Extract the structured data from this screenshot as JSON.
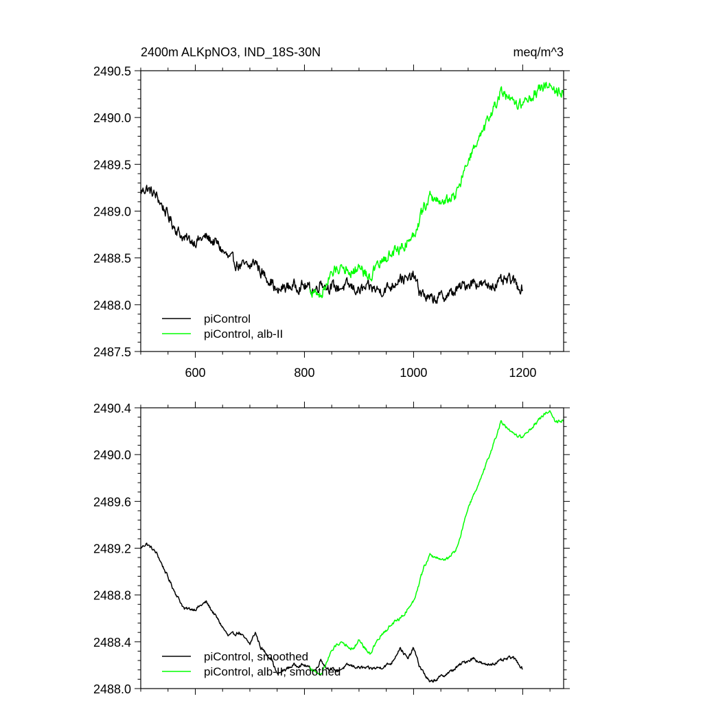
{
  "chart_data": [
    {
      "type": "line",
      "title": "2400m ALKpNO3, IND_18S-30N",
      "units": "meq/m^3",
      "xlim": [
        500,
        1275
      ],
      "ylim": [
        2487.5,
        2490.5
      ],
      "xticks": [
        600,
        800,
        1000,
        1200
      ],
      "xtick_labels": [
        "600",
        "800",
        "1000",
        "1200"
      ],
      "yticks": [
        2487.5,
        2488.0,
        2488.5,
        2489.0,
        2489.5,
        2490.0,
        2490.5
      ],
      "ytick_labels": [
        "2487.5",
        "2488.0",
        "2488.5",
        "2489.0",
        "2489.5",
        "2490.0",
        "2490.5"
      ],
      "legend_position": "bottom-left",
      "series": [
        {
          "name": "piControl",
          "color": "#000000",
          "noise": 0.05,
          "x": [
            500,
            510,
            520,
            530,
            540,
            560,
            580,
            600,
            620,
            640,
            660,
            680,
            700,
            710,
            720,
            740,
            750,
            760,
            780,
            800,
            820,
            830,
            840,
            860,
            880,
            900,
            920,
            940,
            960,
            975,
            990,
            1000,
            1010,
            1030,
            1050,
            1070,
            1090,
            1110,
            1130,
            1150,
            1170,
            1180,
            1190,
            1200
          ],
          "y": [
            2489.2,
            2489.25,
            2489.2,
            2489.15,
            2489.05,
            2488.85,
            2488.7,
            2488.68,
            2488.72,
            2488.65,
            2488.5,
            2488.42,
            2488.4,
            2488.47,
            2488.35,
            2488.25,
            2488.12,
            2488.18,
            2488.2,
            2488.2,
            2488.15,
            2488.25,
            2488.2,
            2488.18,
            2488.2,
            2488.15,
            2488.18,
            2488.15,
            2488.2,
            2488.3,
            2488.25,
            2488.32,
            2488.15,
            2488.05,
            2488.08,
            2488.12,
            2488.2,
            2488.25,
            2488.2,
            2488.22,
            2488.25,
            2488.27,
            2488.2,
            2488.18
          ]
        },
        {
          "name": "piControl, alb-II",
          "color": "#00ff00",
          "noise": 0.05,
          "x": [
            810,
            820,
            830,
            840,
            850,
            860,
            870,
            880,
            890,
            900,
            910,
            920,
            940,
            960,
            980,
            1000,
            1020,
            1030,
            1040,
            1060,
            1080,
            1100,
            1120,
            1140,
            1160,
            1180,
            1200,
            1220,
            1240,
            1250,
            1260,
            1275
          ],
          "y": [
            2488.15,
            2488.12,
            2488.1,
            2488.22,
            2488.32,
            2488.38,
            2488.42,
            2488.38,
            2488.35,
            2488.42,
            2488.35,
            2488.3,
            2488.45,
            2488.55,
            2488.62,
            2488.75,
            2489.05,
            2489.15,
            2489.12,
            2489.1,
            2489.2,
            2489.55,
            2489.75,
            2490.0,
            2490.28,
            2490.15,
            2490.15,
            2490.25,
            2490.35,
            2490.38,
            2490.28,
            2490.3
          ]
        }
      ]
    },
    {
      "type": "line",
      "title": "",
      "units": "",
      "xlim": [
        500,
        1275
      ],
      "ylim": [
        2488.0,
        2490.4
      ],
      "xticks": [
        600,
        800,
        1000,
        1200
      ],
      "xtick_labels": [],
      "yticks": [
        2488.0,
        2488.4,
        2488.8,
        2489.2,
        2489.6,
        2490.0,
        2490.4
      ],
      "ytick_labels": [
        "2488.0",
        "2488.4",
        "2488.8",
        "2489.2",
        "2489.6",
        "2490.0",
        "2490.4"
      ],
      "legend_position": "bottom-left",
      "series": [
        {
          "name": "piControl, smoothed",
          "color": "#000000",
          "noise": 0.012,
          "x": [
            500,
            510,
            520,
            530,
            540,
            560,
            580,
            600,
            620,
            640,
            660,
            680,
            700,
            710,
            720,
            740,
            750,
            760,
            780,
            800,
            820,
            830,
            840,
            860,
            880,
            900,
            920,
            940,
            960,
            975,
            990,
            1000,
            1010,
            1030,
            1050,
            1070,
            1090,
            1110,
            1130,
            1150,
            1170,
            1180,
            1190,
            1200
          ],
          "y": [
            2489.2,
            2489.24,
            2489.2,
            2489.15,
            2489.05,
            2488.85,
            2488.68,
            2488.68,
            2488.74,
            2488.6,
            2488.45,
            2488.48,
            2488.38,
            2488.48,
            2488.35,
            2488.25,
            2488.12,
            2488.15,
            2488.2,
            2488.2,
            2488.15,
            2488.25,
            2488.18,
            2488.15,
            2488.2,
            2488.18,
            2488.17,
            2488.18,
            2488.22,
            2488.35,
            2488.25,
            2488.35,
            2488.2,
            2488.05,
            2488.1,
            2488.15,
            2488.22,
            2488.26,
            2488.2,
            2488.22,
            2488.25,
            2488.27,
            2488.23,
            2488.17
          ]
        },
        {
          "name": "piControl, alb-II, smoothed",
          "color": "#00ff00",
          "noise": 0.012,
          "x": [
            810,
            820,
            830,
            840,
            850,
            860,
            870,
            880,
            890,
            900,
            910,
            920,
            940,
            960,
            980,
            1000,
            1020,
            1030,
            1040,
            1060,
            1080,
            1100,
            1120,
            1140,
            1160,
            1180,
            1200,
            1220,
            1240,
            1250,
            1260,
            1275
          ],
          "y": [
            2488.18,
            2488.14,
            2488.12,
            2488.22,
            2488.32,
            2488.38,
            2488.4,
            2488.36,
            2488.34,
            2488.42,
            2488.35,
            2488.3,
            2488.45,
            2488.55,
            2488.62,
            2488.75,
            2489.05,
            2489.14,
            2489.12,
            2489.1,
            2489.2,
            2489.55,
            2489.75,
            2490.0,
            2490.28,
            2490.18,
            2490.15,
            2490.25,
            2490.35,
            2490.38,
            2490.28,
            2490.3
          ]
        }
      ]
    }
  ]
}
